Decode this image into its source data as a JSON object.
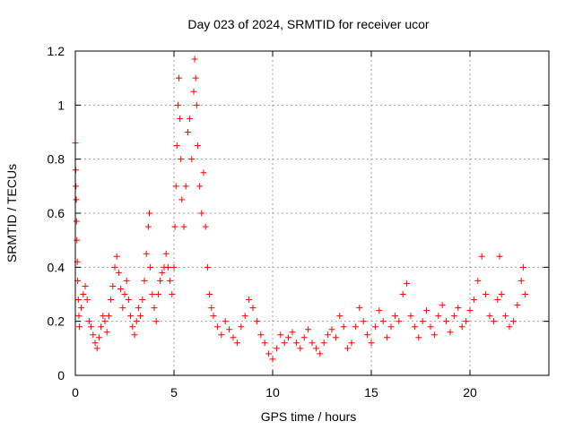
{
  "chart_data": {
    "type": "scatter",
    "title": "Day 023 of 2024, SRMTID for receiver ucor",
    "xlabel": "GPS time / hours",
    "ylabel": "SRMTID / TECUs",
    "xlim": [
      0,
      24
    ],
    "ylim": [
      0,
      1.2
    ],
    "xticks": [
      0,
      5,
      10,
      15,
      20
    ],
    "yticks": [
      0,
      0.2,
      0.4,
      0.6,
      0.8,
      1,
      1.2
    ],
    "xtick_labels": [
      "0",
      "5",
      "10",
      "15",
      "20"
    ],
    "ytick_labels": [
      "0",
      "0.2",
      "0.4",
      "0.6",
      "0.8",
      "1",
      "1.2"
    ],
    "grid": true,
    "marker": "+",
    "color": "#ff0000",
    "points": [
      [
        0.0,
        0.86
      ],
      [
        0.02,
        0.76
      ],
      [
        0.03,
        0.7
      ],
      [
        0.05,
        0.65
      ],
      [
        0.06,
        0.57
      ],
      [
        0.08,
        0.5
      ],
      [
        0.1,
        0.42
      ],
      [
        0.12,
        0.35
      ],
      [
        0.15,
        0.28
      ],
      [
        0.18,
        0.22
      ],
      [
        0.2,
        0.18
      ],
      [
        0.3,
        0.25
      ],
      [
        0.4,
        0.3
      ],
      [
        0.5,
        0.33
      ],
      [
        0.6,
        0.28
      ],
      [
        0.7,
        0.2
      ],
      [
        0.8,
        0.18
      ],
      [
        0.9,
        0.15
      ],
      [
        1.0,
        0.12
      ],
      [
        1.1,
        0.1
      ],
      [
        1.2,
        0.14
      ],
      [
        1.3,
        0.18
      ],
      [
        1.4,
        0.22
      ],
      [
        1.5,
        0.2
      ],
      [
        1.6,
        0.16
      ],
      [
        1.7,
        0.22
      ],
      [
        1.8,
        0.28
      ],
      [
        1.9,
        0.33
      ],
      [
        2.0,
        0.4
      ],
      [
        2.1,
        0.44
      ],
      [
        2.2,
        0.38
      ],
      [
        2.3,
        0.32
      ],
      [
        2.4,
        0.25
      ],
      [
        2.5,
        0.3
      ],
      [
        2.6,
        0.35
      ],
      [
        2.7,
        0.28
      ],
      [
        2.8,
        0.22
      ],
      [
        2.9,
        0.18
      ],
      [
        3.0,
        0.15
      ],
      [
        3.1,
        0.2
      ],
      [
        3.2,
        0.25
      ],
      [
        3.3,
        0.22
      ],
      [
        3.4,
        0.28
      ],
      [
        3.5,
        0.35
      ],
      [
        3.6,
        0.45
      ],
      [
        3.7,
        0.55
      ],
      [
        3.75,
        0.6
      ],
      [
        3.8,
        0.4
      ],
      [
        3.9,
        0.3
      ],
      [
        4.0,
        0.25
      ],
      [
        4.1,
        0.2
      ],
      [
        4.2,
        0.3
      ],
      [
        4.3,
        0.35
      ],
      [
        4.4,
        0.38
      ],
      [
        4.5,
        0.4
      ],
      [
        4.6,
        0.45
      ],
      [
        4.7,
        0.4
      ],
      [
        4.8,
        0.35
      ],
      [
        4.9,
        0.3
      ],
      [
        5.0,
        0.4
      ],
      [
        5.05,
        0.55
      ],
      [
        5.1,
        0.7
      ],
      [
        5.15,
        0.85
      ],
      [
        5.2,
        1.0
      ],
      [
        5.25,
        1.1
      ],
      [
        5.3,
        0.95
      ],
      [
        5.35,
        0.8
      ],
      [
        5.4,
        0.65
      ],
      [
        5.5,
        0.55
      ],
      [
        5.6,
        0.7
      ],
      [
        5.7,
        0.9
      ],
      [
        5.8,
        0.95
      ],
      [
        5.9,
        0.8
      ],
      [
        6.0,
        1.05
      ],
      [
        6.05,
        1.17
      ],
      [
        6.1,
        1.1
      ],
      [
        6.15,
        1.0
      ],
      [
        6.2,
        0.85
      ],
      [
        6.3,
        0.7
      ],
      [
        6.4,
        0.6
      ],
      [
        6.5,
        0.75
      ],
      [
        6.6,
        0.55
      ],
      [
        6.7,
        0.4
      ],
      [
        6.8,
        0.3
      ],
      [
        6.9,
        0.25
      ],
      [
        7.0,
        0.22
      ],
      [
        7.2,
        0.18
      ],
      [
        7.4,
        0.15
      ],
      [
        7.6,
        0.2
      ],
      [
        7.8,
        0.17
      ],
      [
        8.0,
        0.14
      ],
      [
        8.2,
        0.12
      ],
      [
        8.4,
        0.18
      ],
      [
        8.6,
        0.22
      ],
      [
        8.8,
        0.28
      ],
      [
        9.0,
        0.25
      ],
      [
        9.2,
        0.2
      ],
      [
        9.4,
        0.15
      ],
      [
        9.6,
        0.12
      ],
      [
        9.8,
        0.08
      ],
      [
        10.0,
        0.06
      ],
      [
        10.2,
        0.1
      ],
      [
        10.4,
        0.15
      ],
      [
        10.6,
        0.12
      ],
      [
        10.8,
        0.14
      ],
      [
        11.0,
        0.16
      ],
      [
        11.2,
        0.12
      ],
      [
        11.4,
        0.1
      ],
      [
        11.6,
        0.14
      ],
      [
        11.8,
        0.17
      ],
      [
        12.0,
        0.12
      ],
      [
        12.2,
        0.1
      ],
      [
        12.4,
        0.08
      ],
      [
        12.6,
        0.12
      ],
      [
        12.8,
        0.15
      ],
      [
        13.0,
        0.17
      ],
      [
        13.2,
        0.14
      ],
      [
        13.4,
        0.22
      ],
      [
        13.6,
        0.18
      ],
      [
        13.8,
        0.1
      ],
      [
        14.0,
        0.12
      ],
      [
        14.2,
        0.18
      ],
      [
        14.4,
        0.25
      ],
      [
        14.6,
        0.2
      ],
      [
        14.8,
        0.15
      ],
      [
        15.0,
        0.12
      ],
      [
        15.2,
        0.18
      ],
      [
        15.4,
        0.24
      ],
      [
        15.6,
        0.2
      ],
      [
        15.8,
        0.14
      ],
      [
        16.0,
        0.18
      ],
      [
        16.2,
        0.22
      ],
      [
        16.4,
        0.2
      ],
      [
        16.6,
        0.3
      ],
      [
        16.8,
        0.34
      ],
      [
        17.0,
        0.22
      ],
      [
        17.2,
        0.18
      ],
      [
        17.4,
        0.14
      ],
      [
        17.6,
        0.2
      ],
      [
        17.8,
        0.24
      ],
      [
        18.0,
        0.18
      ],
      [
        18.2,
        0.15
      ],
      [
        18.4,
        0.22
      ],
      [
        18.6,
        0.26
      ],
      [
        18.8,
        0.2
      ],
      [
        19.0,
        0.16
      ],
      [
        19.2,
        0.22
      ],
      [
        19.4,
        0.25
      ],
      [
        19.6,
        0.18
      ],
      [
        19.8,
        0.2
      ],
      [
        20.0,
        0.24
      ],
      [
        20.2,
        0.28
      ],
      [
        20.4,
        0.35
      ],
      [
        20.6,
        0.44
      ],
      [
        20.8,
        0.3
      ],
      [
        21.0,
        0.22
      ],
      [
        21.2,
        0.2
      ],
      [
        21.4,
        0.28
      ],
      [
        21.5,
        0.44
      ],
      [
        21.6,
        0.3
      ],
      [
        21.8,
        0.22
      ],
      [
        22.0,
        0.18
      ],
      [
        22.2,
        0.2
      ],
      [
        22.4,
        0.26
      ],
      [
        22.6,
        0.35
      ],
      [
        22.7,
        0.4
      ],
      [
        22.8,
        0.3
      ]
    ]
  }
}
